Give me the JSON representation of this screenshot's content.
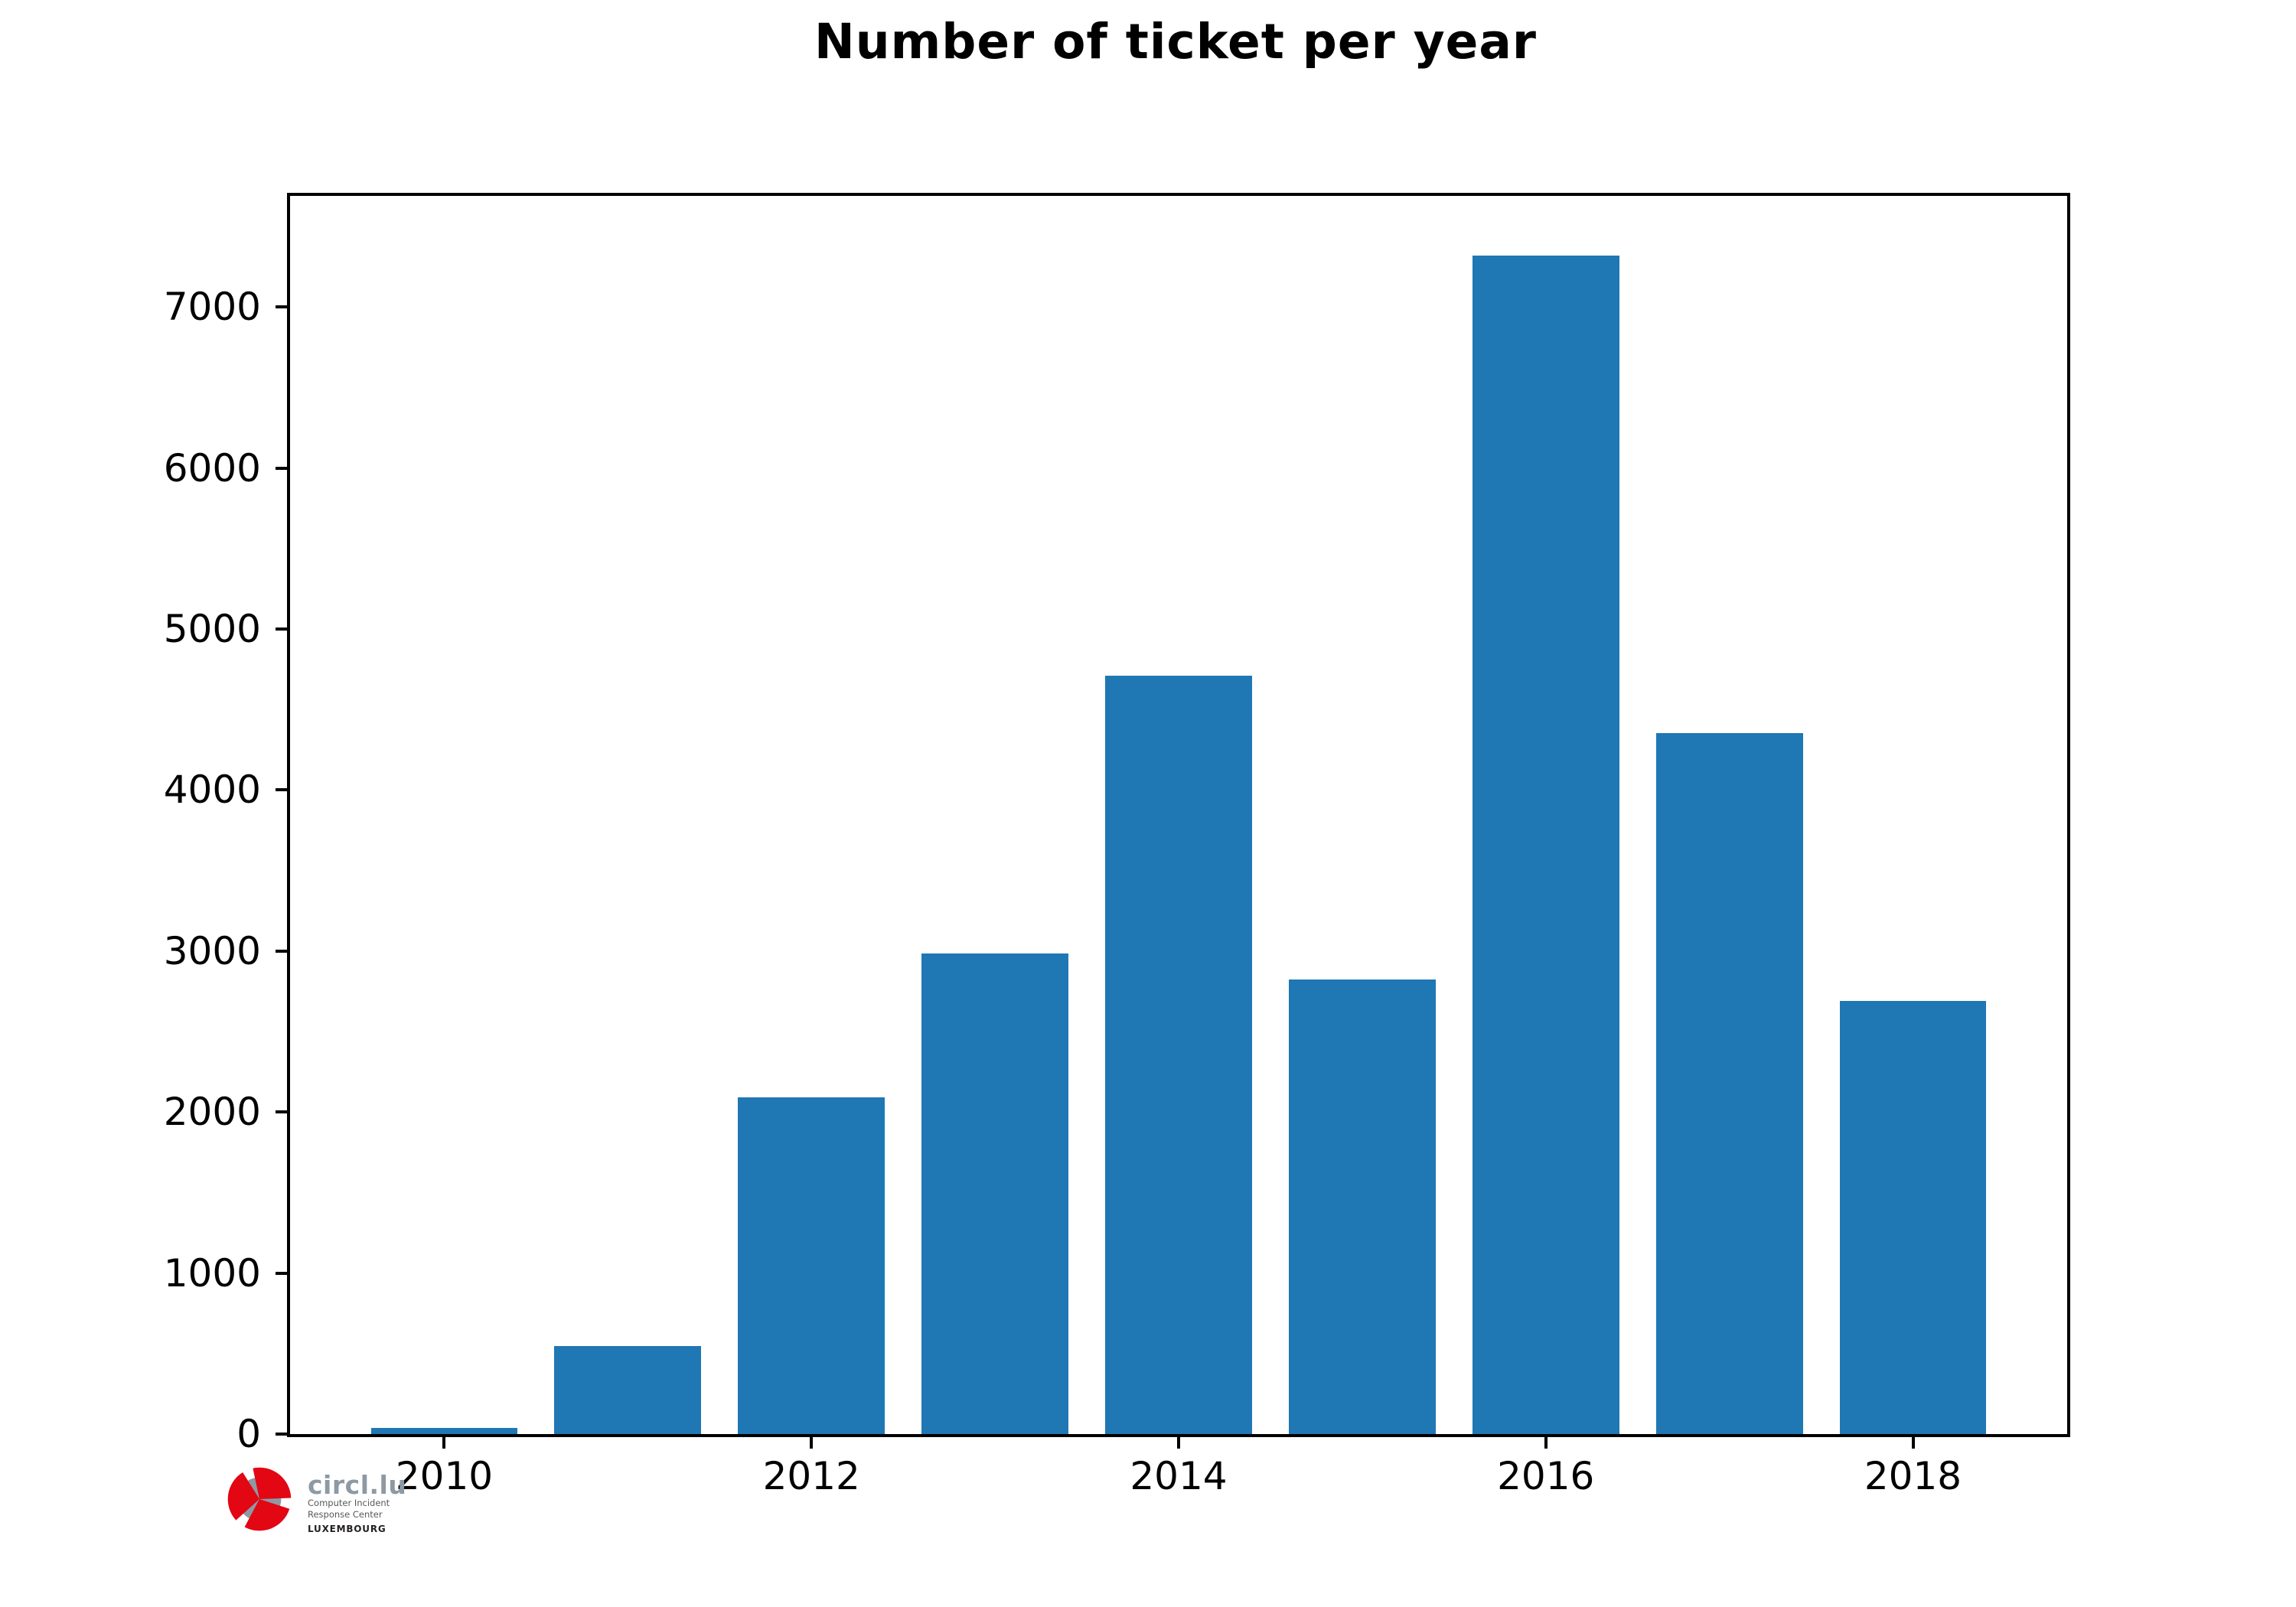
{
  "chart_data": {
    "type": "bar",
    "title": "Number of ticket per year",
    "categories": [
      2010,
      2011,
      2012,
      2013,
      2014,
      2015,
      2016,
      2017,
      2018
    ],
    "values": [
      40,
      545,
      2090,
      2985,
      4710,
      2825,
      7320,
      4355,
      2690
    ],
    "xlabel": "",
    "ylabel": "",
    "xlim": [
      2009.16,
      2018.84
    ],
    "ylim": [
      0,
      7690
    ],
    "yticks": [
      0,
      1000,
      2000,
      3000,
      4000,
      5000,
      6000,
      7000
    ],
    "xticks": [
      2010,
      2012,
      2014,
      2016,
      2018
    ],
    "bar_width": 0.8,
    "bar_color": "#1f77b4",
    "grid": false,
    "legend": null,
    "axes_color": "#000000"
  },
  "logo": {
    "name": "circl.lu",
    "line1": "Computer Incident",
    "line2": "Response Center",
    "line3": "LUXEMBOURG",
    "red": "#e30613",
    "gray": "#8d99a3",
    "sub_color": "#58595b",
    "country_color": "#231f20"
  }
}
